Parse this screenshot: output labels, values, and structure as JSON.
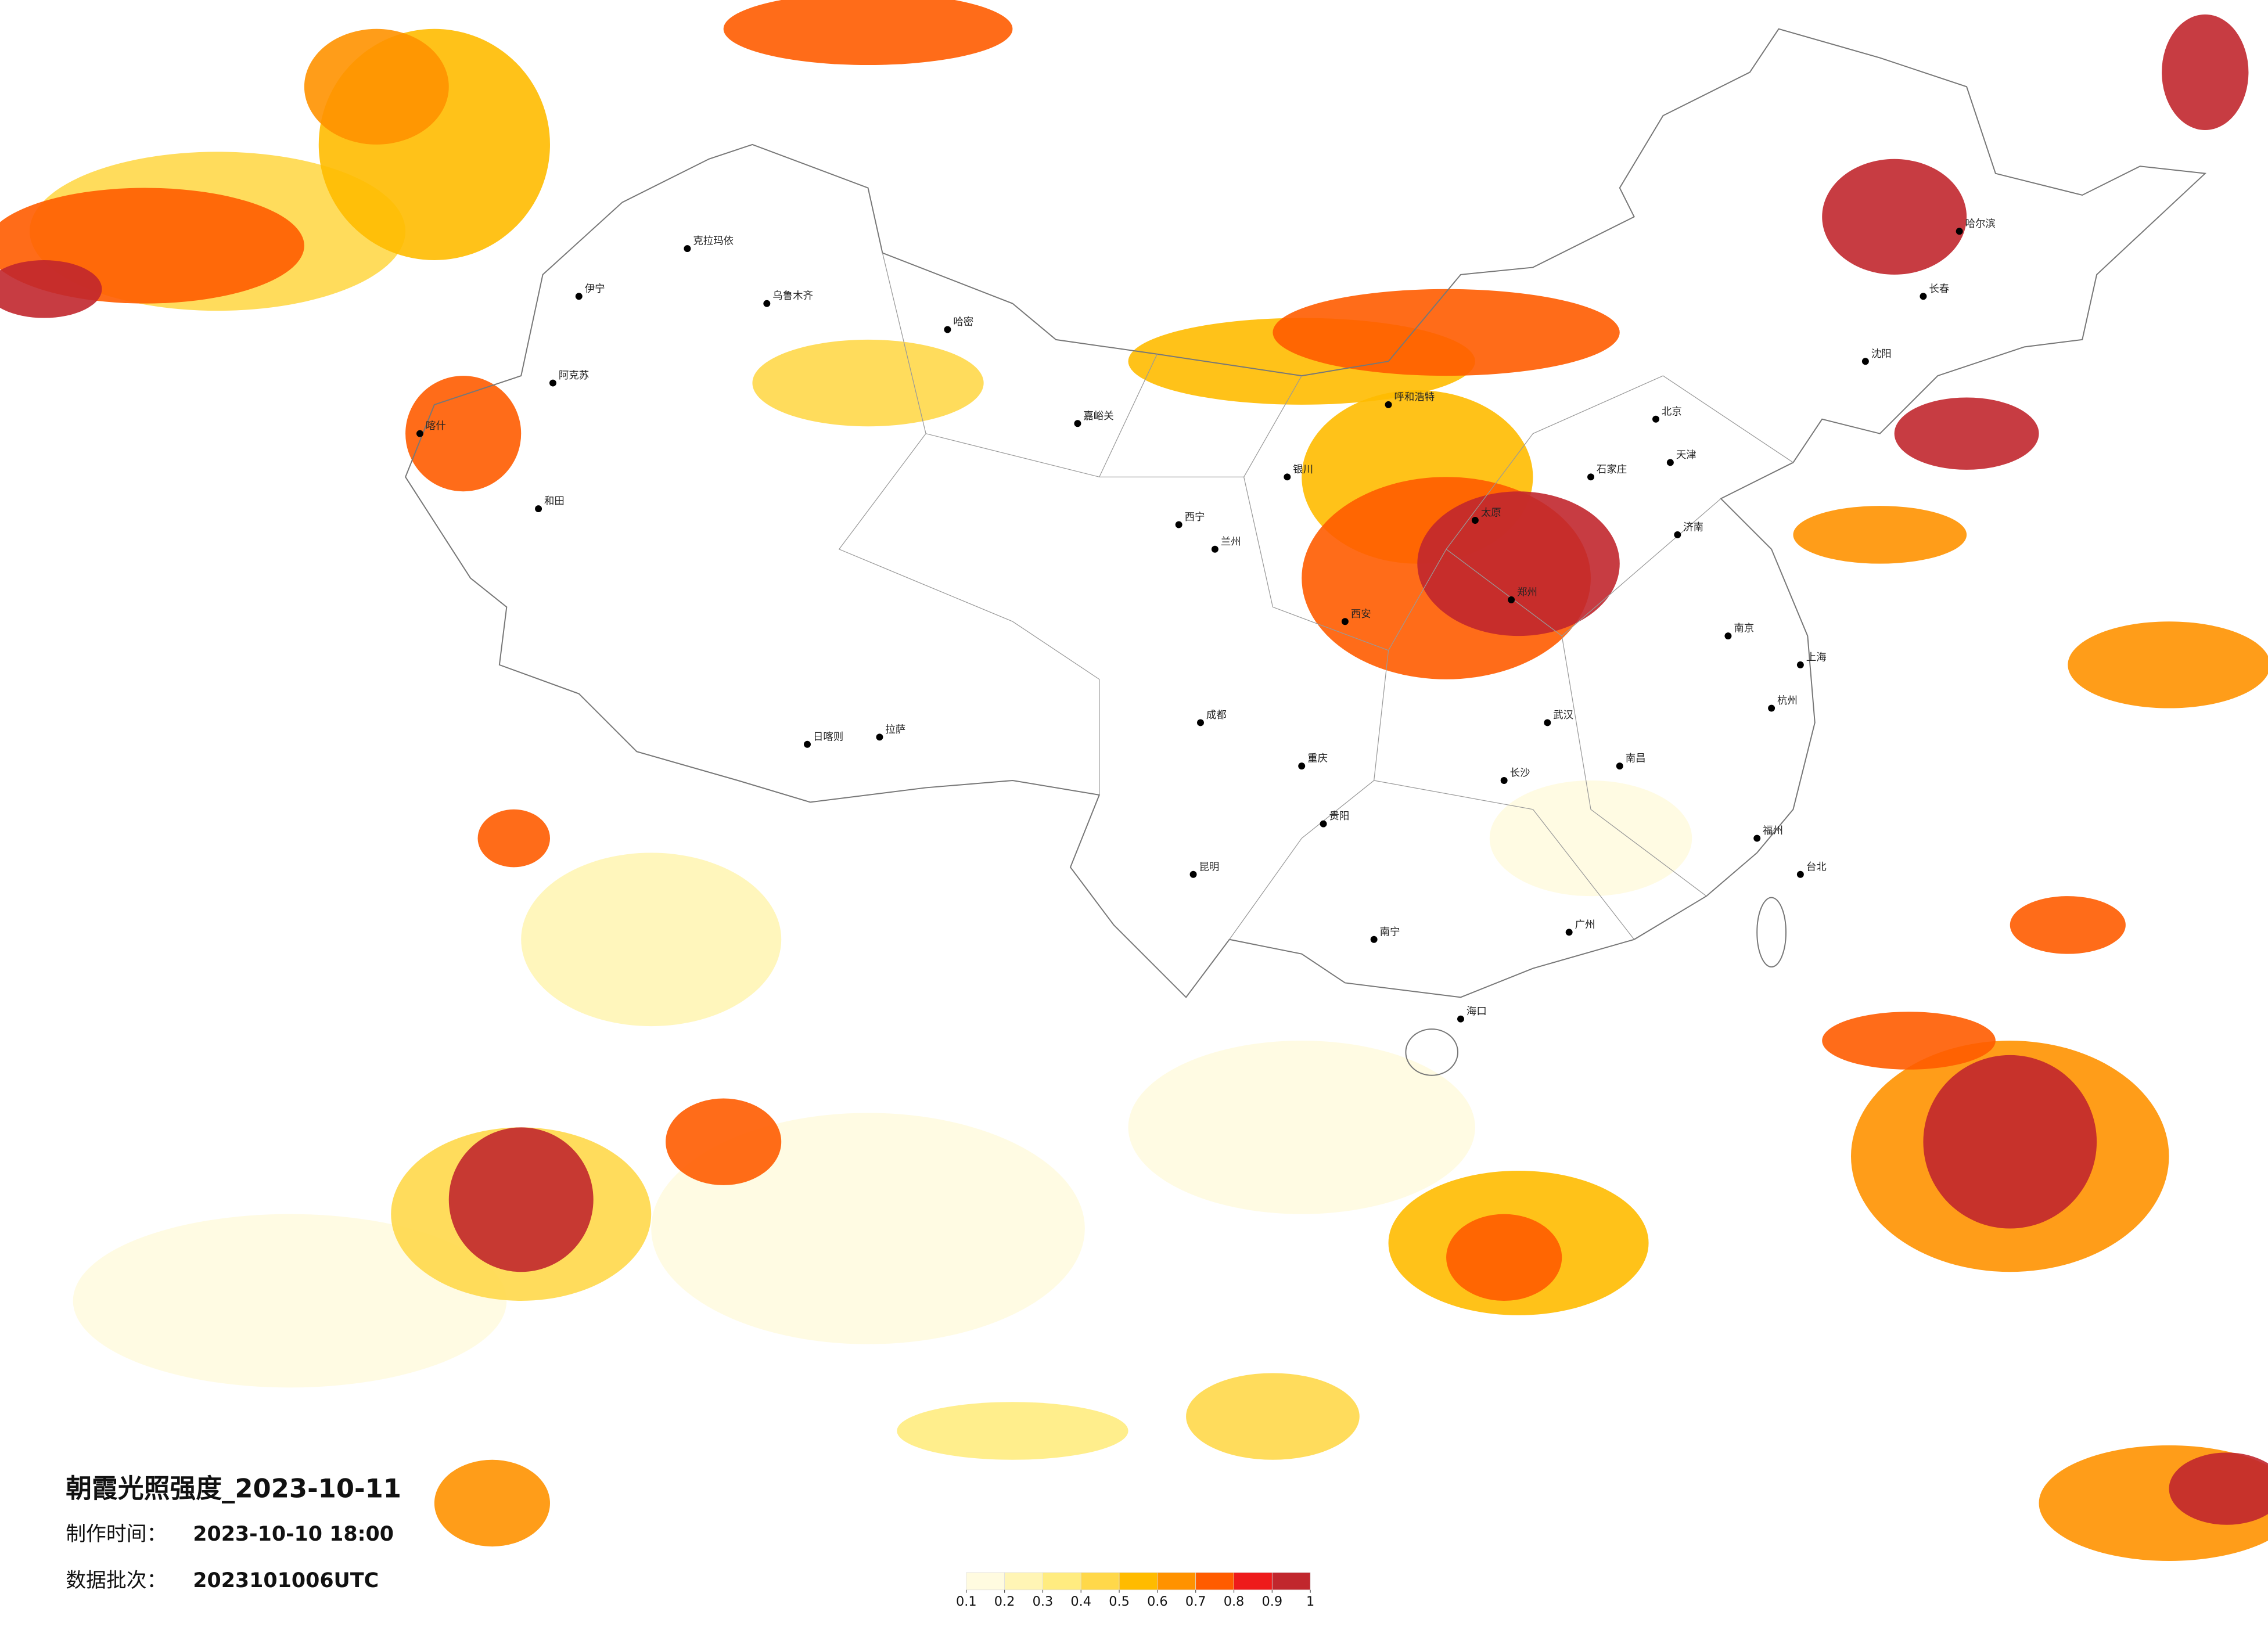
{
  "title": "朝霞光照强度_2023-10-11",
  "info": [
    {
      "label": "制作时间：",
      "value": "2023-10-10 18:00"
    },
    {
      "label": "数据批次：",
      "value": "2023101006UTC"
    }
  ],
  "colorbar": {
    "ticks": [
      0.1,
      0.2,
      0.3,
      0.4,
      0.5,
      0.6,
      0.7,
      0.8,
      0.9,
      1
    ],
    "colors": [
      "#fffbe0",
      "#fff5b5",
      "#ffec80",
      "#ffd84a",
      "#ffbb00",
      "#ff9200",
      "#ff5c00",
      "#ee1b1b",
      "#c1272d"
    ]
  },
  "cities": [
    "克拉玛依",
    "伊宁",
    "乌鲁木齐",
    "阿克苏",
    "喀什",
    "和田",
    "哈密",
    "嘉峪关",
    "西宁",
    "兰州",
    "银川",
    "拉萨",
    "日喀则",
    "呼和浩特",
    "北京",
    "天津",
    "石家庄",
    "太原",
    "济南",
    "西安",
    "郑州",
    "成都",
    "重庆",
    "武汉",
    "南京",
    "上海",
    "杭州",
    "长沙",
    "南昌",
    "福州",
    "贵阳",
    "昆明",
    "南宁",
    "广州",
    "海口",
    "哈尔滨",
    "长春",
    "沈阳",
    "台北"
  ]
}
